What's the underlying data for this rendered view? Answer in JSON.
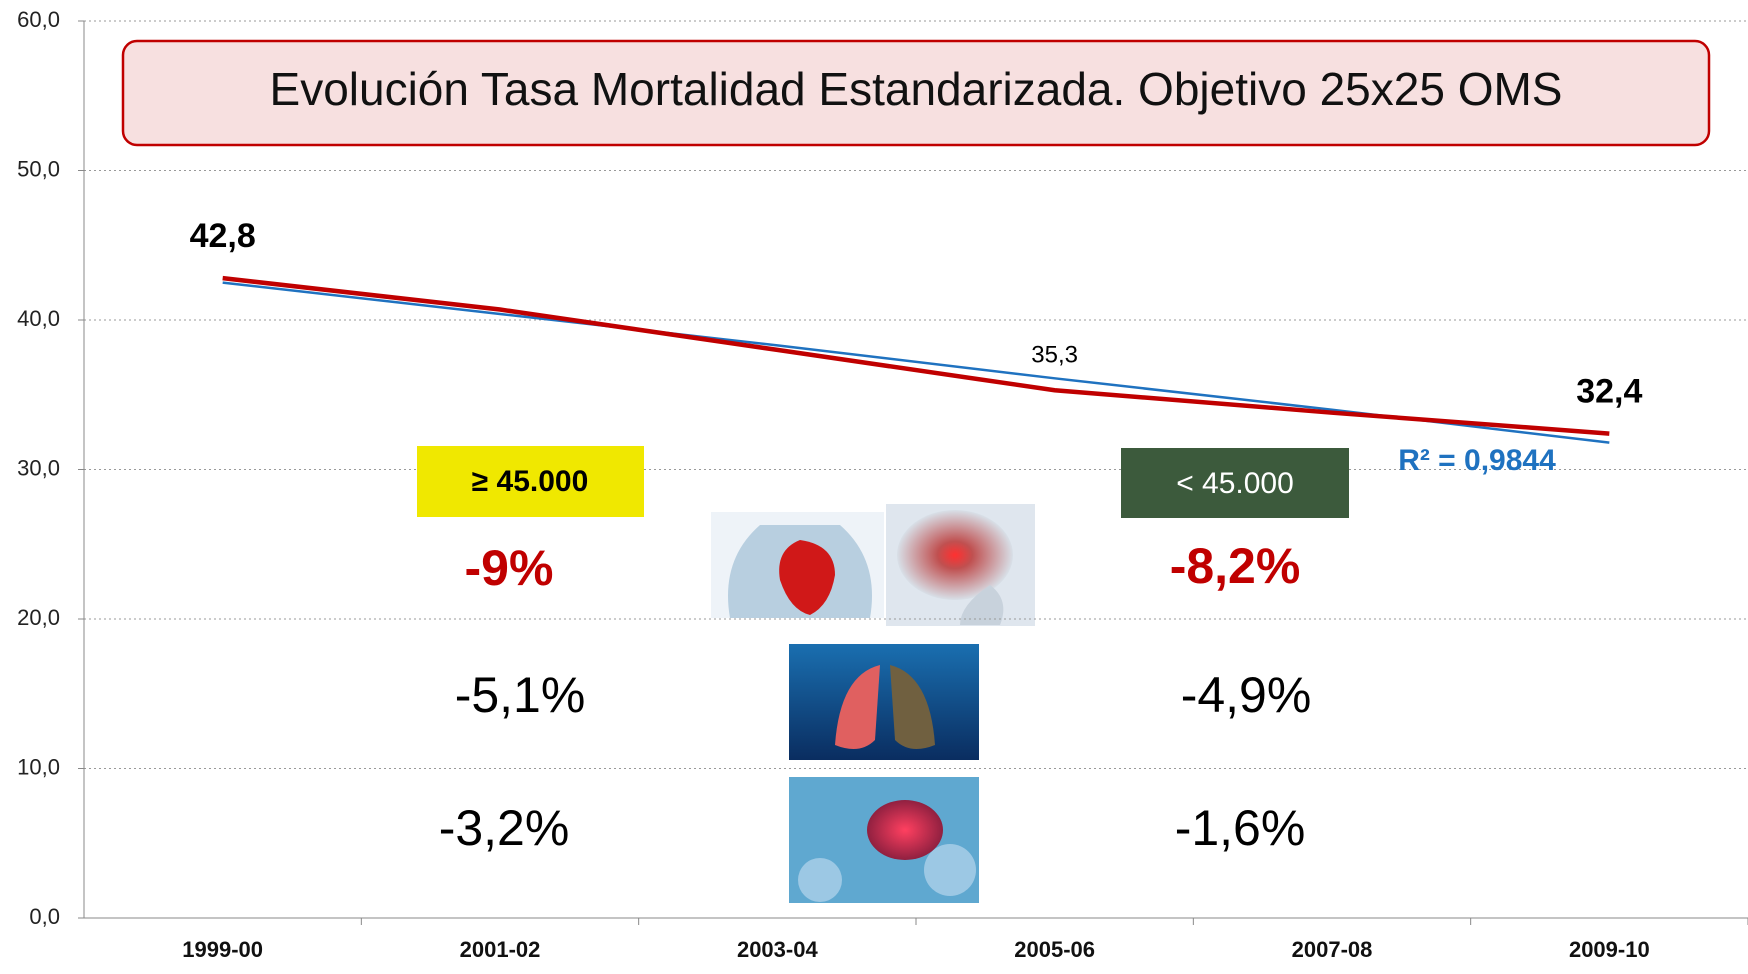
{
  "chart_data": {
    "type": "line",
    "title": "Evolución Tasa Mortalidad Estandarizada. Objetivo 25x25 OMS",
    "categories": [
      "1999-00",
      "2001-02",
      "2003-04",
      "2005-06",
      "2007-08",
      "2009-10"
    ],
    "series": [
      {
        "color": "#c00000",
        "values": [
          42.8,
          40.7,
          38.0,
          35.3,
          33.8,
          32.4
        ],
        "value_labels": [
          "42,8",
          null,
          null,
          "35,3",
          null,
          "32,4"
        ]
      }
    ],
    "trendline": {
      "color": "#1f72c0",
      "values": [
        42.5,
        40.4,
        38.3,
        36.1,
        34.0,
        31.8
      ],
      "label": "R² = 0,9844"
    },
    "ylim": [
      0,
      60
    ],
    "yticks": [
      {
        "value": 0,
        "label": "0,0"
      },
      {
        "value": 10,
        "label": "10,0"
      },
      {
        "value": 20,
        "label": "20,0"
      },
      {
        "value": 30,
        "label": "30,0"
      },
      {
        "value": 40,
        "label": "40,0"
      },
      {
        "value": 50,
        "label": "50,0"
      },
      {
        "value": 60,
        "label": "60,0"
      }
    ],
    "grid": true,
    "annotations": [
      "≥ 45.000",
      "< 45.000",
      "-9%",
      "-8,2%",
      "-5,1%",
      "-4,9%",
      "-3,2%",
      "-1,6%"
    ]
  }
}
